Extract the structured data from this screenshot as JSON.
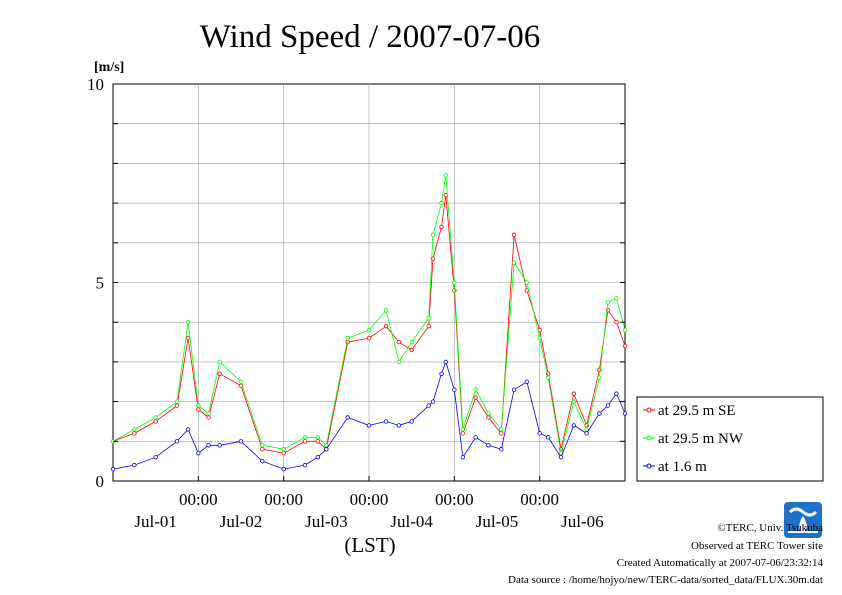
{
  "chart_data": {
    "type": "line",
    "title": "Wind Speed / 2007-07-06",
    "ylabel": "[m/s]",
    "xlabel": "(LST)",
    "ylim": [
      0,
      10
    ],
    "y_ticks": [
      "0",
      "5",
      "10"
    ],
    "x_range_days": [
      0,
      6
    ],
    "x_time_ticks": [
      "00:00",
      "00:00",
      "00:00",
      "00:00",
      "00:00"
    ],
    "x_date_labels": [
      "Jul-01",
      "Jul-02",
      "Jul-03",
      "Jul-04",
      "Jul-05",
      "Jul-06"
    ],
    "grid": true,
    "legend_position": "right",
    "series": [
      {
        "name": "at 29.5 m SE",
        "color": "#ff0000",
        "x": [
          0.0,
          0.25,
          0.5,
          0.75,
          0.88,
          1.0,
          1.12,
          1.25,
          1.5,
          1.75,
          2.0,
          2.25,
          2.4,
          2.5,
          2.75,
          3.0,
          3.2,
          3.35,
          3.5,
          3.7,
          3.75,
          3.85,
          3.9,
          4.0,
          4.1,
          4.25,
          4.4,
          4.55,
          4.7,
          4.85,
          5.0,
          5.1,
          5.25,
          5.4,
          5.55,
          5.7,
          5.8,
          5.9,
          6.0
        ],
        "y": [
          1.0,
          1.2,
          1.5,
          1.9,
          3.6,
          1.8,
          1.6,
          2.7,
          2.4,
          0.8,
          0.7,
          1.0,
          1.0,
          0.8,
          3.5,
          3.6,
          3.9,
          3.5,
          3.3,
          3.9,
          5.6,
          6.4,
          7.2,
          4.8,
          1.2,
          2.1,
          1.6,
          1.2,
          6.2,
          4.8,
          3.8,
          2.7,
          0.8,
          2.2,
          1.4,
          2.8,
          4.3,
          4.0,
          3.4
        ]
      },
      {
        "name": "at 29.5 m NW",
        "color": "#00ff00",
        "x": [
          0.0,
          0.25,
          0.5,
          0.75,
          0.88,
          1.0,
          1.12,
          1.25,
          1.5,
          1.75,
          2.0,
          2.25,
          2.4,
          2.5,
          2.75,
          3.0,
          3.2,
          3.35,
          3.5,
          3.7,
          3.75,
          3.85,
          3.9,
          4.0,
          4.1,
          4.25,
          4.4,
          4.55,
          4.7,
          4.85,
          5.0,
          5.1,
          5.25,
          5.4,
          5.55,
          5.7,
          5.8,
          5.9,
          6.0
        ],
        "y": [
          1.0,
          1.3,
          1.6,
          2.0,
          4.0,
          1.9,
          1.7,
          3.0,
          2.5,
          0.9,
          0.8,
          1.1,
          1.1,
          0.9,
          3.6,
          3.8,
          4.3,
          3.0,
          3.5,
          4.1,
          6.2,
          7.0,
          7.7,
          5.0,
          1.3,
          2.3,
          1.7,
          1.3,
          5.5,
          5.0,
          3.6,
          2.6,
          0.7,
          2.0,
          1.3,
          2.6,
          4.5,
          4.6,
          3.8
        ]
      },
      {
        "name": "at 1.6 m",
        "color": "#0000ff",
        "x": [
          0.0,
          0.25,
          0.5,
          0.75,
          0.88,
          1.0,
          1.12,
          1.25,
          1.5,
          1.75,
          2.0,
          2.25,
          2.4,
          2.5,
          2.75,
          3.0,
          3.2,
          3.35,
          3.5,
          3.7,
          3.75,
          3.85,
          3.9,
          4.0,
          4.1,
          4.25,
          4.4,
          4.55,
          4.7,
          4.85,
          5.0,
          5.1,
          5.25,
          5.4,
          5.55,
          5.7,
          5.8,
          5.9,
          6.0
        ],
        "y": [
          0.3,
          0.4,
          0.6,
          1.0,
          1.3,
          0.7,
          0.9,
          0.9,
          1.0,
          0.5,
          0.3,
          0.4,
          0.6,
          0.8,
          1.6,
          1.4,
          1.5,
          1.4,
          1.5,
          1.9,
          2.0,
          2.7,
          3.0,
          2.3,
          0.6,
          1.1,
          0.9,
          0.8,
          2.3,
          2.5,
          1.2,
          1.1,
          0.6,
          1.4,
          1.2,
          1.7,
          1.9,
          2.2,
          1.7
        ]
      }
    ]
  },
  "credits": {
    "copyright": "©TERC, Univ. Tsukuba",
    "site": "Observed at TERC Tower site",
    "created": "Created Automatically at 2007-07-06/23:32:14",
    "source": "Data source : /home/hojyo/new/TERC-data/sorted_data/FLUX.30m.dat"
  }
}
